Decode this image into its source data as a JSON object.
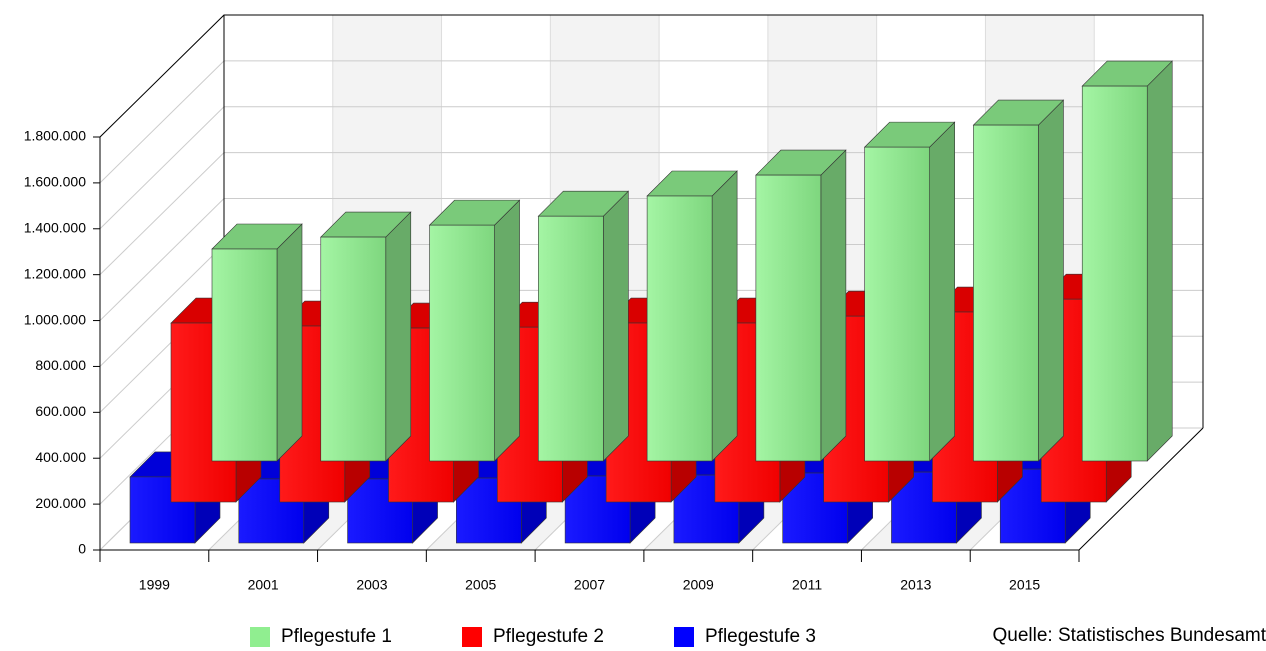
{
  "chart_data": {
    "type": "bar3d",
    "categories": [
      "1999",
      "2001",
      "2003",
      "2005",
      "2007",
      "2009",
      "2011",
      "2013",
      "2015"
    ],
    "series": [
      {
        "name": "Pflegestufe 1",
        "color": "#90ee90",
        "values": [
          924000,
          976000,
          1028000,
          1067000,
          1155000,
          1246000,
          1368000,
          1464000,
          1634000
        ]
      },
      {
        "name": "Pflegestufe 2",
        "color": "#ff0000",
        "values": [
          780000,
          767000,
          758000,
          762000,
          780000,
          780000,
          810000,
          828000,
          884000
        ]
      },
      {
        "name": "Pflegestufe 3",
        "color": "#0000ff",
        "values": [
          288000,
          279000,
          279000,
          283000,
          292000,
          296000,
          305000,
          309000,
          322000
        ]
      }
    ],
    "ylim": [
      0,
      1800000
    ],
    "yticks": [
      0,
      {
        "value": 200000,
        "label": "200.000"
      },
      {
        "value": 400000,
        "label": "400.000"
      },
      {
        "value": 600000,
        "label": "600.000"
      },
      {
        "value": 800000,
        "label": "800.000"
      },
      {
        "value": 1000000,
        "label": "1.000.000"
      },
      {
        "value": 1200000,
        "label": "1.200.000"
      },
      {
        "value": 1400000,
        "label": "1.400.000"
      },
      {
        "value": 1600000,
        "label": "1.600.000"
      },
      {
        "value": 1800000,
        "label": "1.800.000"
      }
    ],
    "grid": true,
    "legend": "bottom",
    "source": "Quelle: Statistisches Bundesamt"
  }
}
